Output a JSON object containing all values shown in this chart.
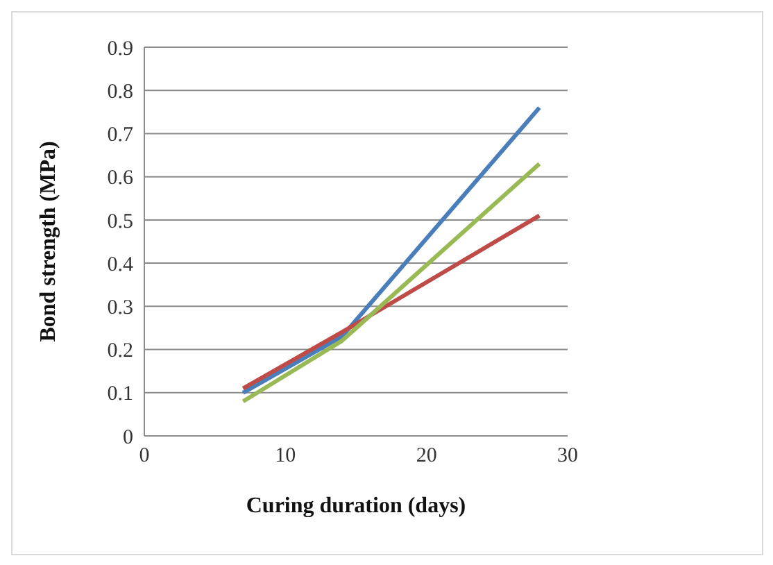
{
  "chart_data": {
    "type": "line",
    "xlabel": "Curing duration (days)",
    "ylabel": "Bond strength (MPa)",
    "x": [
      7,
      14,
      28
    ],
    "series": [
      {
        "color": "#4a7ebb",
        "values": [
          0.1,
          0.23,
          0.76
        ]
      },
      {
        "color": "#be4b48",
        "values": [
          0.11,
          0.24,
          0.51
        ]
      },
      {
        "color": "#98b954",
        "values": [
          0.08,
          0.22,
          0.63
        ]
      }
    ],
    "xlim": [
      0,
      30
    ],
    "xticks": [
      0,
      10,
      20,
      30
    ],
    "ylim": [
      0,
      0.9
    ],
    "yticks": [
      0,
      0.1,
      0.2,
      0.3,
      0.4,
      0.5,
      0.6,
      0.7,
      0.8,
      0.9
    ],
    "grid": "y",
    "legend": false,
    "marker": "none",
    "line_style": "solid"
  }
}
